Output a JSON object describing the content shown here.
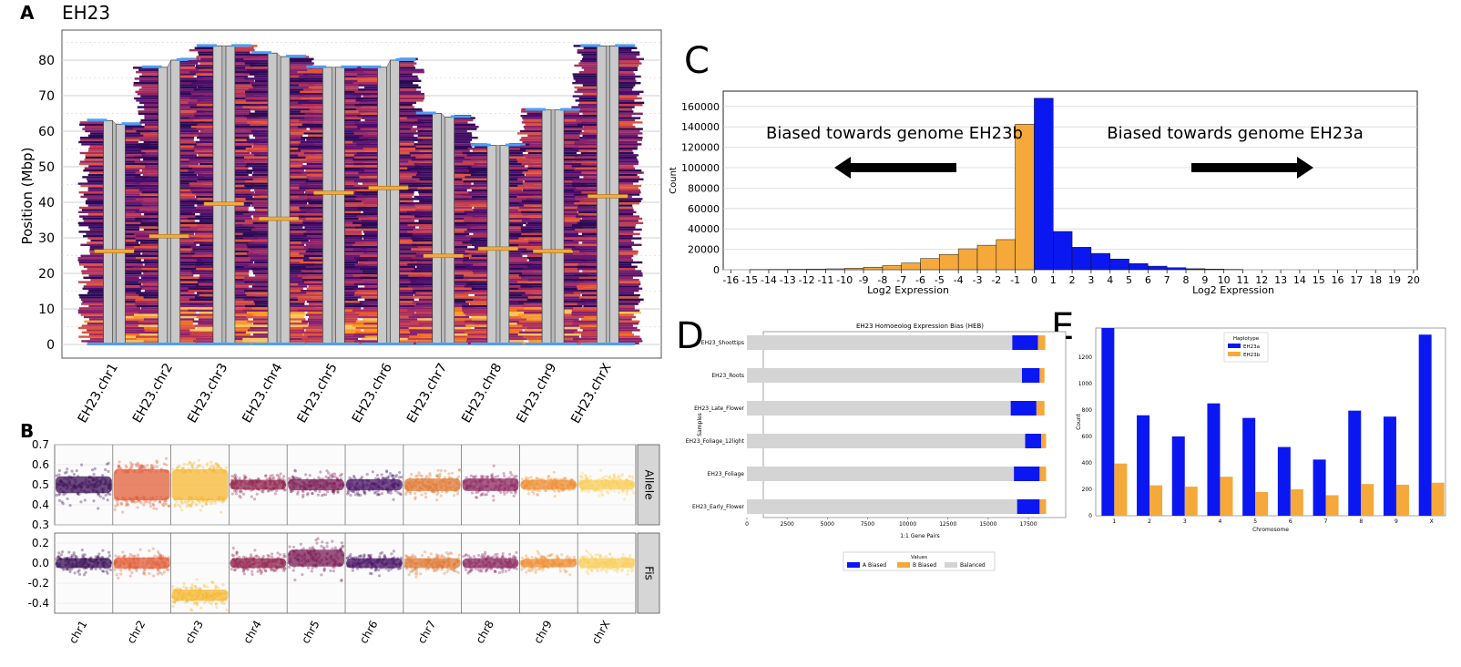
{
  "figure": {
    "panel_labels": {
      "a": "A",
      "b": "B",
      "c": "C",
      "d": "D",
      "e": "E"
    }
  },
  "colors": {
    "grey_chrom": "#c9c9c9",
    "blue_a": "#0b17f0",
    "orange_b": "#f5a93a",
    "balanced": "#d4d4d4",
    "marker_blue": "#4c9ff5"
  },
  "chart_data": [
    {
      "id": "A",
      "type": "karyotype",
      "title": "EH23",
      "ylabel": "Position (Mbp)",
      "ylim": [
        0,
        88
      ],
      "yticks": [
        0,
        10,
        20,
        30,
        40,
        50,
        60,
        70,
        80
      ],
      "grid": true,
      "chromosomes": [
        {
          "name": "EH23.chr1",
          "length_a": 63,
          "length_b": 62
        },
        {
          "name": "EH23.chr2",
          "length_a": 78,
          "length_b": 80
        },
        {
          "name": "EH23.chr3",
          "length_a": 84,
          "length_b": 84
        },
        {
          "name": "EH23.chr4",
          "length_a": 82,
          "length_b": 81
        },
        {
          "name": "EH23.chr5",
          "length_a": 78,
          "length_b": 78
        },
        {
          "name": "EH23.chr6",
          "length_a": 78,
          "length_b": 80
        },
        {
          "name": "EH23.chr7",
          "length_a": 65,
          "length_b": 64
        },
        {
          "name": "EH23.chr8",
          "length_a": 56,
          "length_b": 56
        },
        {
          "name": "EH23.chr9",
          "length_a": 66,
          "length_b": 66
        },
        {
          "name": "EH23.chrX",
          "length_a": 84,
          "length_b": 84
        }
      ]
    },
    {
      "id": "B",
      "type": "scatter",
      "categories": [
        "chr1",
        "chr2",
        "chr3",
        "chr4",
        "chr5",
        "chr6",
        "chr7",
        "chr8",
        "chr9",
        "chrX"
      ],
      "series": [
        {
          "name": "Allele",
          "ylim": [
            0.3,
            0.7
          ],
          "yticks": [
            "0.7",
            "0.6",
            "0.5",
            "0.4",
            "0.3"
          ],
          "centers": [
            0.5,
            0.5,
            0.5,
            0.5,
            0.5,
            0.5,
            0.5,
            0.5,
            0.5,
            0.5
          ],
          "spreads": [
            0.06,
            0.11,
            0.11,
            0.035,
            0.04,
            0.04,
            0.045,
            0.045,
            0.035,
            0.035
          ]
        },
        {
          "name": "Fis",
          "ylim": [
            -0.5,
            0.3
          ],
          "yticks": [
            "0.2",
            "0.0",
            "-0.2",
            "-0.4"
          ],
          "centers": [
            0.0,
            0.0,
            -0.32,
            0.0,
            0.05,
            0.0,
            0.0,
            0.0,
            0.0,
            0.0
          ],
          "spreads": [
            0.07,
            0.08,
            0.08,
            0.07,
            0.12,
            0.07,
            0.07,
            0.07,
            0.06,
            0.07
          ]
        }
      ],
      "colors": [
        "#3b0f56",
        "#e25f3a",
        "#f5b731",
        "#92244e",
        "#7b1c57",
        "#4a1466",
        "#e07934",
        "#8e2a62",
        "#f08f34",
        "#f8cd59"
      ]
    },
    {
      "id": "C",
      "type": "bar",
      "xlabel": "Log2 Expression",
      "ylabel": "Count",
      "ylim": [
        0,
        175000
      ],
      "yticks": [
        0,
        20000,
        40000,
        60000,
        80000,
        100000,
        120000,
        140000,
        160000
      ],
      "x_ticks": [
        "-16",
        "-15",
        "-14",
        "-13",
        "-12",
        "-11",
        "-10",
        "-9",
        "-8",
        "-7",
        "-6",
        "-5",
        "-4",
        "-3",
        "-2",
        "-1",
        "0",
        "1",
        "2",
        "3",
        "4",
        "5",
        "6",
        "7",
        "8",
        "9",
        "10",
        "11",
        "12",
        "13",
        "14",
        "15",
        "16",
        "17",
        "18",
        "19",
        "20"
      ],
      "x_start": -16,
      "bin_width": 0.5,
      "series": [
        {
          "name": "Biased towards genome EH23b",
          "values": [
            200,
            300,
            400,
            600,
            900,
            1400,
            2500,
            4000,
            6500,
            11000,
            15000,
            20500,
            24000,
            29500,
            142500
          ]
        },
        {
          "name": "Biased towards genome EH23a",
          "values": [
            168000,
            37500,
            22000,
            16000,
            10500,
            6000,
            3500,
            2000,
            1000,
            600,
            300
          ]
        }
      ],
      "annotations": {
        "left": "Biased towards genome EH23b",
        "right": "Biased towards genome EH23a"
      }
    },
    {
      "id": "D",
      "type": "bar",
      "orientation": "horizontal-stacked",
      "title": "EH23 Homoeolog Expression Bias (HEB)",
      "xlabel": "1:1 Gene Pairs",
      "ylabel": "Samples",
      "xlim": [
        0,
        18800
      ],
      "xticks": [
        "0",
        "2500",
        "5000",
        "7500",
        "10000",
        "12500",
        "15000",
        "17500"
      ],
      "categories": [
        "EH23_Shoottips",
        "EH23_Roots",
        "EH23_Late_Flower",
        "EH23_Foliage_12light",
        "EH23_Foliage",
        "EH23_Early_Flower"
      ],
      "series": [
        {
          "name": "Balanced",
          "values": [
            16500,
            17100,
            16400,
            17300,
            16600,
            16800
          ]
        },
        {
          "name": "A Biased",
          "values": [
            1600,
            1100,
            1600,
            1000,
            1600,
            1400
          ]
        },
        {
          "name": "B Biased",
          "values": [
            450,
            300,
            500,
            300,
            400,
            400
          ]
        }
      ],
      "legend_title": "Values",
      "legend": [
        "A Biased",
        "B Biased",
        "Balanced"
      ]
    },
    {
      "id": "E",
      "type": "bar",
      "xlabel": "Chromosome",
      "ylabel": "Count",
      "ylim": [
        0,
        1420
      ],
      "yticks": [
        0,
        200,
        400,
        600,
        800,
        1000,
        1200
      ],
      "categories": [
        "1",
        "2",
        "3",
        "4",
        "5",
        "6",
        "7",
        "8",
        "9",
        "X"
      ],
      "series": [
        {
          "name": "EH23a",
          "values": [
            1420,
            760,
            600,
            850,
            740,
            520,
            425,
            795,
            750,
            1370
          ]
        },
        {
          "name": "EH23b",
          "values": [
            395,
            230,
            220,
            295,
            180,
            200,
            155,
            240,
            235,
            250
          ]
        }
      ],
      "legend_title": "Haplotype"
    }
  ]
}
